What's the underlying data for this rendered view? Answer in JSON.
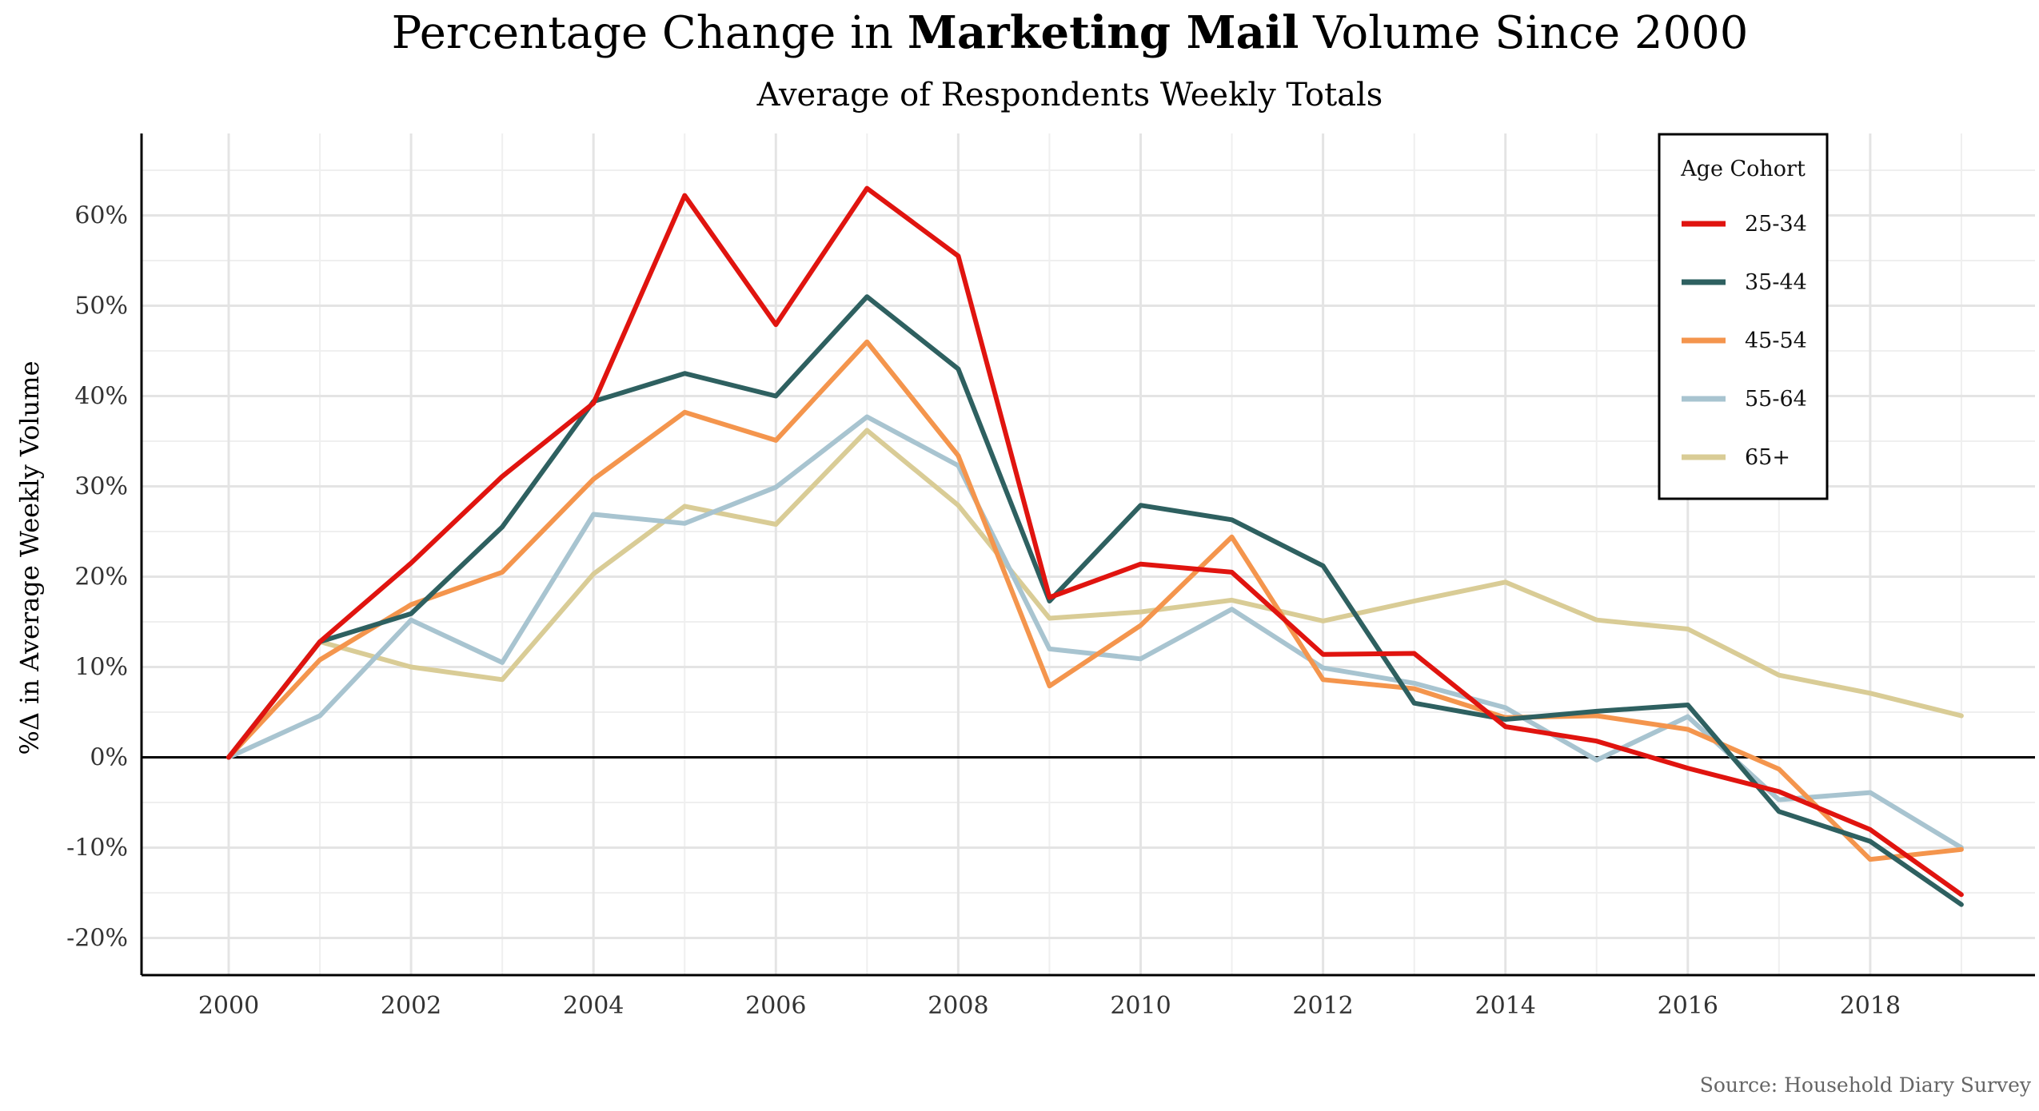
{
  "chart_data": {
    "type": "line",
    "title_prefix": "Percentage Change in ",
    "title_bold": "Marketing Mail",
    "title_suffix": " Volume Since 2000",
    "subtitle": "Average of Respondents Weekly Totals",
    "xlabel": "",
    "ylabel": "%Δ in Average Weekly Volume",
    "source": "Source: Household Diary Survey",
    "legend_title": "Age Cohort",
    "legend_position": "top-right",
    "grid": true,
    "xlim": [
      1999,
      2020
    ],
    "ylim": [
      -24.5,
      69.5
    ],
    "xticks": [
      2000,
      2002,
      2004,
      2006,
      2008,
      2010,
      2012,
      2014,
      2016,
      2018
    ],
    "yticks": [
      -20,
      -10,
      0,
      10,
      20,
      30,
      40,
      50,
      60
    ],
    "ytick_labels": [
      "-20%",
      "-10%",
      "0%",
      "10%",
      "20%",
      "30%",
      "40%",
      "50%",
      "60%"
    ],
    "x": [
      2000,
      2001,
      2002,
      2003,
      2004,
      2005,
      2006,
      2007,
      2008,
      2009,
      2010,
      2011,
      2012,
      2013,
      2014,
      2015,
      2016,
      2017,
      2018,
      2019
    ],
    "series": [
      {
        "name": "65+",
        "color": "#d9cc96",
        "values": [
          0,
          12.8,
          10,
          8.6,
          20.3,
          27.8,
          25.8,
          36.2,
          27.9,
          15.4,
          16.1,
          17.4,
          15.1,
          17.3,
          19.4,
          15.2,
          14.2,
          9.1,
          7.1,
          4.6
        ]
      },
      {
        "name": "55-64",
        "color": "#a8c4d0",
        "values": [
          0,
          4.6,
          15.2,
          10.5,
          26.9,
          25.9,
          29.9,
          37.7,
          32.3,
          12,
          10.9,
          16.4,
          9.9,
          8.2,
          5.5,
          -0.3,
          4.5,
          -4.7,
          -3.9,
          -10
        ]
      },
      {
        "name": "45-54",
        "color": "#f4954d",
        "values": [
          0,
          10.8,
          16.9,
          20.5,
          30.8,
          38.2,
          35.1,
          46,
          33.4,
          7.9,
          14.6,
          24.4,
          8.6,
          7.6,
          4.4,
          4.6,
          3.1,
          -1.3,
          -11.3,
          -10.2
        ]
      },
      {
        "name": "35-44",
        "color": "#2e6060",
        "values": [
          0,
          12.8,
          15.9,
          25.5,
          39.4,
          42.5,
          40,
          51,
          43,
          17.3,
          27.9,
          26.3,
          21.2,
          6,
          4.2,
          5.1,
          5.8,
          -6,
          -9.3,
          -16.3
        ]
      },
      {
        "name": "25-34",
        "color": "#e0140f",
        "values": [
          0,
          12.8,
          21.5,
          31.1,
          39.2,
          62.2,
          47.9,
          63,
          55.5,
          17.7,
          21.4,
          20.5,
          11.4,
          11.5,
          3.4,
          1.8,
          -1.2,
          -3.8,
          -8,
          -15.2
        ]
      }
    ],
    "legend_order": [
      "25-34",
      "35-44",
      "45-54",
      "55-64",
      "65+"
    ]
  }
}
